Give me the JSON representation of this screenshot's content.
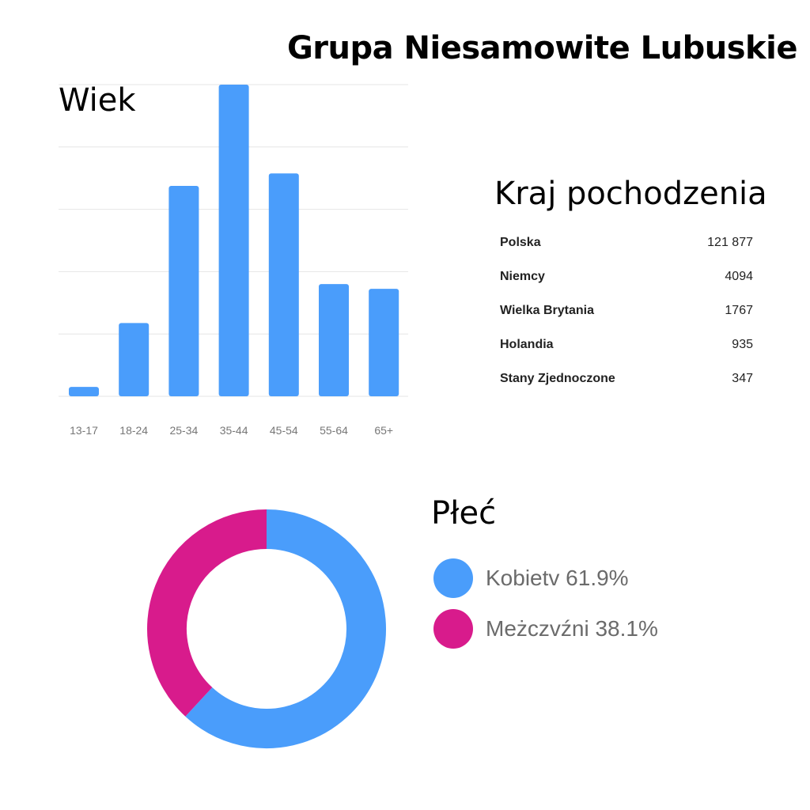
{
  "title": "Grupa Niesamowite Lubuskie",
  "colors": {
    "blue": "#4a9dfb",
    "magenta": "#d81b8c",
    "grid": "#e6e6e6",
    "tick": "#777777"
  },
  "chart_data": [
    {
      "type": "bar",
      "title": "Wiek",
      "categories": [
        "13-17",
        "18-24",
        "25-34",
        "35-44",
        "45-54",
        "55-64",
        "65+"
      ],
      "values": [
        3,
        23.5,
        67.5,
        100,
        71.5,
        36,
        34.5
      ],
      "ylim": [
        0,
        100
      ],
      "grid": true,
      "gridlines": 5
    },
    {
      "type": "table",
      "title": "Kraj pochodzenia",
      "rows": [
        {
          "country": "Polska",
          "value": "121 877"
        },
        {
          "country": "Niemcy",
          "value": "4094"
        },
        {
          "country": "Wielka Brytania",
          "value": "1767"
        },
        {
          "country": "Holandia",
          "value": "935"
        },
        {
          "country": "Stany Zjednoczone",
          "value": "347"
        }
      ]
    },
    {
      "type": "pie",
      "title": "Płeć",
      "slices": [
        {
          "label": "Kobietv 61.9%",
          "value": 61.9,
          "color": "#4a9dfb"
        },
        {
          "label": "Meżczvźni 38.1%",
          "value": 38.1,
          "color": "#d81b8c"
        }
      ]
    }
  ]
}
